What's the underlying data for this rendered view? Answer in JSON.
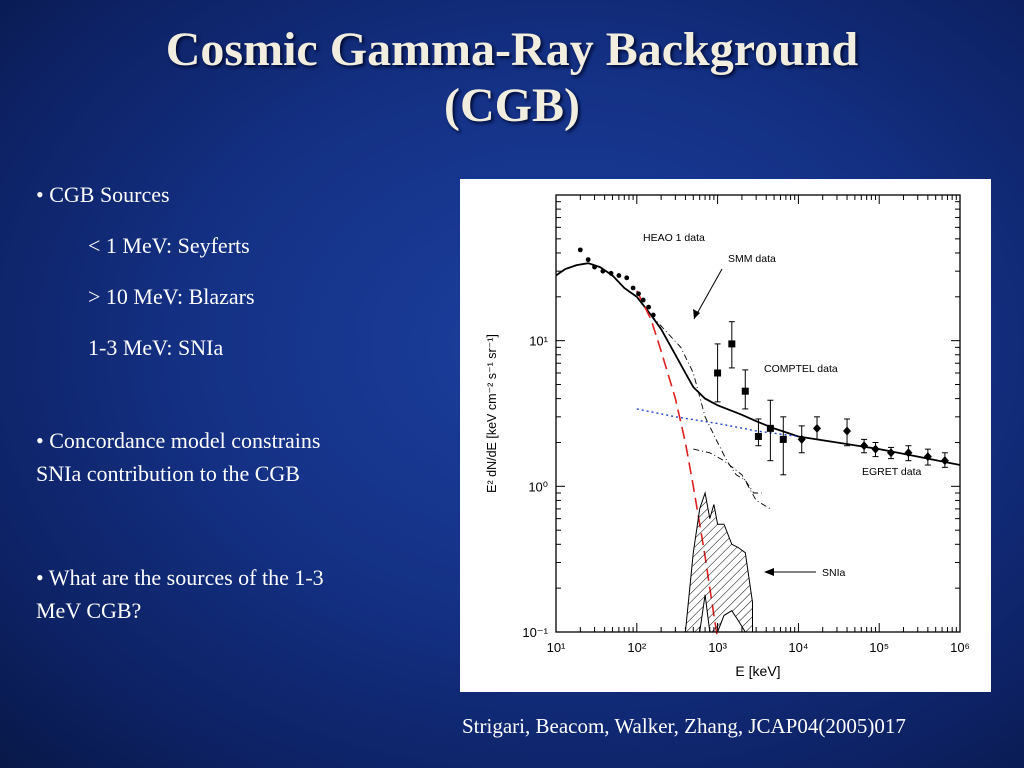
{
  "slide": {
    "title_line1": "Cosmic Gamma-Ray Background",
    "title_line2": "(CGB)",
    "bullets": {
      "b1": "• CGB Sources",
      "sub1": "< 1 MeV: Seyferts",
      "sub2": "> 10 MeV: Blazars",
      "sub3": "1-3 MeV: SNIa",
      "b2_line1": "• Concordance model constrains",
      "b2_line2": "SNIa contribution to the  CGB",
      "b3_line1": "• What are the sources of  the 1-3",
      "b3_line2": "MeV CGB?"
    },
    "citation": "Strigari, Beacom, Walker, Zhang, JCAP04(2005)017"
  },
  "chart_data": {
    "type": "scatter",
    "title": "",
    "xlabel": "E [keV]",
    "ylabel": "E² dN/dE [keV cm⁻² s⁻¹ sr⁻¹]",
    "xscale": "log",
    "yscale": "log",
    "xlim": [
      10,
      1000000
    ],
    "ylim": [
      0.1,
      100
    ],
    "x_ticks": [
      "10¹",
      "10²",
      "10³",
      "10⁴",
      "10⁵",
      "10⁶"
    ],
    "y_ticks": [
      "10⁻¹",
      "10⁰",
      "10¹"
    ],
    "annotations": [
      "HEAO 1 data",
      "SMM data",
      "COMPTEL data",
      "EGRET data",
      "SNIa"
    ],
    "series": [
      {
        "name": "HEAO 1 data",
        "marker": "dot",
        "x": [
          20,
          25,
          30,
          38,
          48,
          60,
          75,
          90,
          105,
          120,
          140,
          160
        ],
        "y": [
          42,
          36,
          32,
          30,
          29,
          28,
          27,
          23,
          21,
          19,
          17,
          15
        ]
      },
      {
        "name": "COMPTEL data",
        "marker": "square",
        "x": [
          1000,
          1500,
          2200,
          3200,
          4500,
          6500
        ],
        "y": [
          6,
          9.5,
          4.5,
          2.2,
          2.5,
          2.1
        ],
        "yerr_low": [
          3.8,
          6.5,
          3.4,
          1.9,
          1.5,
          1.2
        ],
        "yerr_high": [
          9.5,
          13.5,
          6.3,
          2.9,
          3.9,
          3.0
        ]
      },
      {
        "name": "EGRET data",
        "marker": "diamond",
        "x": [
          11000,
          17000,
          40000,
          65000,
          90000,
          140000,
          230000,
          400000,
          650000
        ],
        "y": [
          2.1,
          2.5,
          2.4,
          1.9,
          1.8,
          1.7,
          1.7,
          1.6,
          1.5
        ],
        "yerr_low": [
          1.7,
          2.1,
          1.9,
          1.7,
          1.6,
          1.55,
          1.5,
          1.4,
          1.35
        ],
        "yerr_high": [
          2.6,
          3.0,
          2.9,
          2.1,
          2.0,
          1.85,
          1.9,
          1.8,
          1.7
        ]
      },
      {
        "name": "",
        "style": "solid",
        "x": [
          10,
          13,
          18,
          25,
          35,
          50,
          70,
          100,
          150,
          200,
          300,
          400,
          500,
          700,
          1000,
          1500,
          2000,
          3000,
          5000,
          10000,
          30000,
          100000,
          300000,
          1000000
        ],
        "y": [
          28,
          31,
          33,
          34,
          32,
          28,
          23,
          20,
          15,
          12,
          8,
          6,
          4.8,
          4,
          3.6,
          3.3,
          3.1,
          2.8,
          2.5,
          2.2,
          2.0,
          1.8,
          1.6,
          1.4
        ]
      },
      {
        "name": "",
        "style": "dashed-red",
        "x": [
          100,
          150,
          200,
          300,
          400,
          500,
          600,
          700,
          800,
          900,
          1000
        ],
        "y": [
          22,
          14,
          8.5,
          4.0,
          2.0,
          1.0,
          0.55,
          0.33,
          0.2,
          0.13,
          0.09
        ]
      },
      {
        "name": "",
        "style": "dotted-blue",
        "x": [
          100,
          300,
          1000,
          3000,
          10000
        ],
        "y": [
          3.4,
          3.0,
          2.7,
          2.4,
          2.2
        ]
      },
      {
        "name": "",
        "style": "dashdot",
        "x": [
          150,
          250,
          350,
          500,
          700,
          1000,
          1300,
          1700,
          2200,
          2800,
          3500
        ],
        "y": [
          15,
          11,
          9,
          6,
          3.0,
          2.0,
          1.5,
          1.2,
          1.1,
          0.9,
          0.9
        ]
      },
      {
        "name": "",
        "style": "dashdot",
        "x": [
          500,
          800,
          1200,
          2000,
          3000,
          4500
        ],
        "y": [
          1.8,
          1.7,
          1.5,
          1.2,
          0.8,
          0.7
        ]
      },
      {
        "name": "SNIa",
        "style": "hatched-band",
        "upper": {
          "x": [
            400,
            500,
            600,
            700,
            800,
            900,
            1000,
            1200,
            1500,
            1800,
            2200,
            2700
          ],
          "y": [
            0.1,
            0.35,
            0.7,
            0.9,
            0.6,
            0.75,
            0.55,
            0.55,
            0.4,
            0.38,
            0.35,
            0.16
          ]
        },
        "lower": {
          "x": [
            400,
            500,
            600,
            700,
            800,
            900,
            1000,
            1200,
            1500,
            1800,
            2200,
            2700
          ],
          "y": [
            0.1,
            0.1,
            0.1,
            0.18,
            0.1,
            0.1,
            0.1,
            0.13,
            0.14,
            0.12,
            0.1,
            0.1
          ]
        }
      }
    ]
  }
}
